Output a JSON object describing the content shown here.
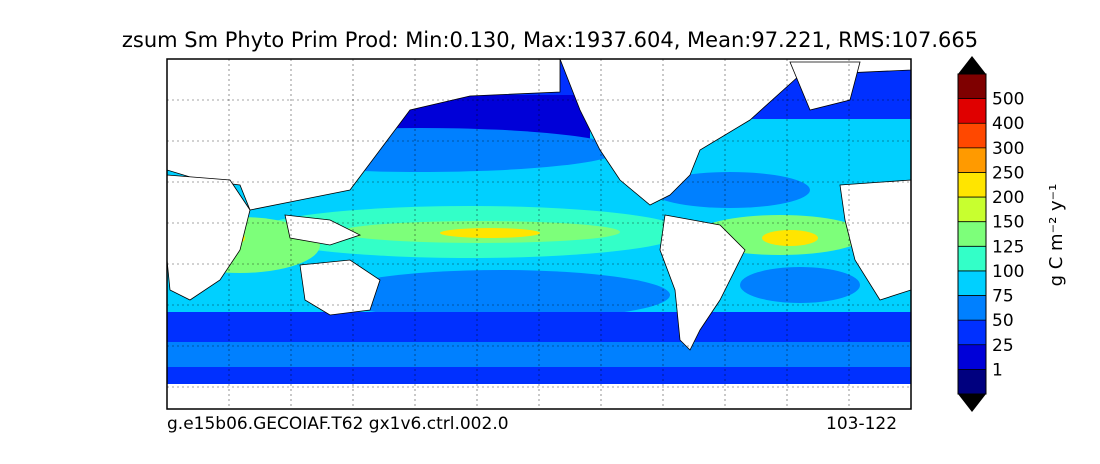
{
  "chart_data": {
    "type": "heatmap",
    "title": "zsum Sm Phyto Prim Prod: Min:0.130, Max:1937.604, Mean:97.221, RMS:107.665",
    "stats": {
      "min": 0.13,
      "max": 1937.604,
      "mean": 97.221,
      "rms": 107.665
    },
    "map": "global ocean, lon 30E to 390E (dateline-centred Pacific), lat 80S to 90N",
    "grid": true,
    "colorbar": {
      "label": "g C m⁻² y⁻¹",
      "levels": [
        "1",
        "25",
        "50",
        "75",
        "100",
        "125",
        "150",
        "200",
        "250",
        "300",
        "400",
        "500"
      ],
      "colors": [
        "#00007f",
        "#0000d8",
        "#0030ff",
        "#0080ff",
        "#00d0ff",
        "#33ffc8",
        "#7dff7a",
        "#c8ff2f",
        "#ffe500",
        "#ff9a00",
        "#ff4800",
        "#e00000",
        "#7f0000"
      ],
      "extend": "both"
    },
    "footer_left": "g.e15b06.GECOIAF.T62 gx1v6.ctrl.002.0",
    "footer_right": "103-122"
  }
}
